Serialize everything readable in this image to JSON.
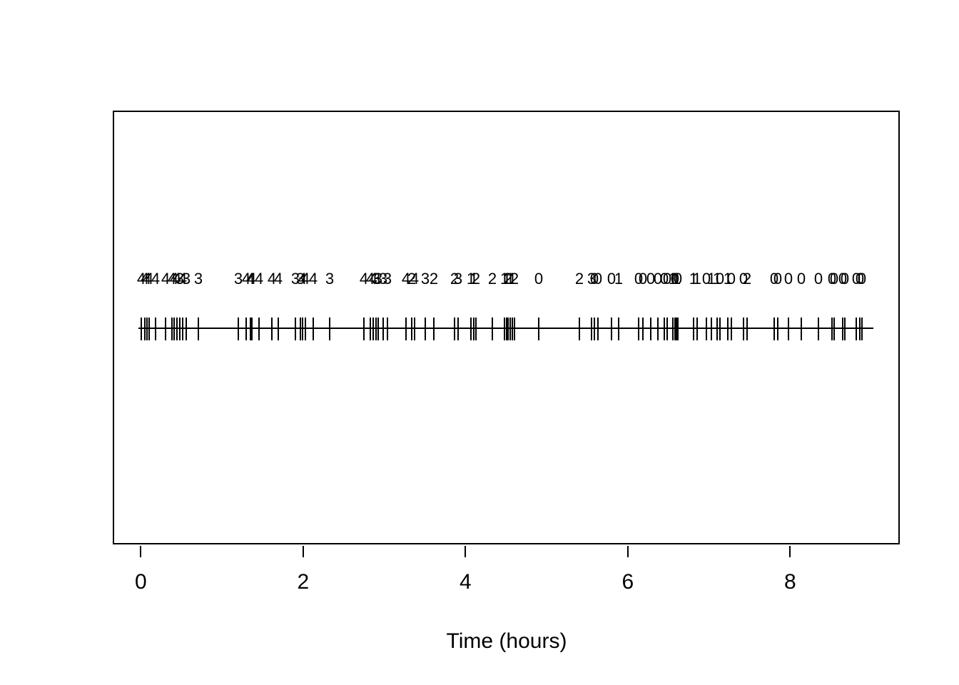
{
  "figure": {
    "background_color": "#ffffff",
    "foreground_color": "#000000"
  },
  "chart_data": {
    "type": "scatter",
    "subtype": "event-rug-plot",
    "title": "",
    "xlabel": "Time (hours)",
    "ylabel": "",
    "xlim": [
      -0.35,
      9.35
    ],
    "xticks": [
      0,
      2,
      4,
      6,
      8
    ],
    "xtick_labels": [
      "0",
      "2",
      "4",
      "6",
      "8"
    ],
    "grid": "off",
    "legend": "none",
    "description": "Horizontal timeline with a vertical tick at each event time; the number printed above each tick is the count label for that event.",
    "points": [
      {
        "t": 0.005,
        "n": 4
      },
      {
        "t": 0.049,
        "n": 4
      },
      {
        "t": 0.076,
        "n": 4
      },
      {
        "t": 0.102,
        "n": 4
      },
      {
        "t": 0.181,
        "n": 4
      },
      {
        "t": 0.304,
        "n": 4
      },
      {
        "t": 0.383,
        "n": 4
      },
      {
        "t": 0.41,
        "n": 4
      },
      {
        "t": 0.445,
        "n": 4
      },
      {
        "t": 0.48,
        "n": 3
      },
      {
        "t": 0.515,
        "n": 4
      },
      {
        "t": 0.559,
        "n": 3
      },
      {
        "t": 0.709,
        "n": 3
      },
      {
        "t": 1.201,
        "n": 3
      },
      {
        "t": 1.298,
        "n": 4
      },
      {
        "t": 1.35,
        "n": 4
      },
      {
        "t": 1.368,
        "n": 4
      },
      {
        "t": 1.456,
        "n": 4
      },
      {
        "t": 1.614,
        "n": 4
      },
      {
        "t": 1.693,
        "n": 4
      },
      {
        "t": 1.904,
        "n": 3
      },
      {
        "t": 1.966,
        "n": 3
      },
      {
        "t": 1.992,
        "n": 4
      },
      {
        "t": 2.027,
        "n": 4
      },
      {
        "t": 2.124,
        "n": 4
      },
      {
        "t": 2.326,
        "n": 3
      },
      {
        "t": 2.748,
        "n": 4
      },
      {
        "t": 2.827,
        "n": 4
      },
      {
        "t": 2.862,
        "n": 4
      },
      {
        "t": 2.898,
        "n": 3
      },
      {
        "t": 2.924,
        "n": 3
      },
      {
        "t": 2.986,
        "n": 3
      },
      {
        "t": 3.038,
        "n": 3
      },
      {
        "t": 3.267,
        "n": 4
      },
      {
        "t": 3.337,
        "n": 2
      },
      {
        "t": 3.372,
        "n": 4
      },
      {
        "t": 3.504,
        "n": 3
      },
      {
        "t": 3.61,
        "n": 2
      },
      {
        "t": 3.865,
        "n": 2
      },
      {
        "t": 3.909,
        "n": 3
      },
      {
        "t": 4.067,
        "n": 1
      },
      {
        "t": 4.102,
        "n": 1
      },
      {
        "t": 4.128,
        "n": 2
      },
      {
        "t": 4.331,
        "n": 2
      },
      {
        "t": 4.48,
        "n": 1
      },
      {
        "t": 4.507,
        "n": 1
      },
      {
        "t": 4.524,
        "n": 2
      },
      {
        "t": 4.551,
        "n": 1
      },
      {
        "t": 4.577,
        "n": 1
      },
      {
        "t": 4.603,
        "n": 2
      },
      {
        "t": 4.902,
        "n": 0
      },
      {
        "t": 5.403,
        "n": 2
      },
      {
        "t": 5.553,
        "n": 3
      },
      {
        "t": 5.588,
        "n": 0
      },
      {
        "t": 5.632,
        "n": 0
      },
      {
        "t": 5.799,
        "n": 0
      },
      {
        "t": 5.887,
        "n": 1
      },
      {
        "t": 6.133,
        "n": 0
      },
      {
        "t": 6.185,
        "n": 0
      },
      {
        "t": 6.282,
        "n": 0
      },
      {
        "t": 6.37,
        "n": 0
      },
      {
        "t": 6.449,
        "n": 0
      },
      {
        "t": 6.484,
        "n": 0
      },
      {
        "t": 6.555,
        "n": 1
      },
      {
        "t": 6.581,
        "n": 0
      },
      {
        "t": 6.598,
        "n": 1
      },
      {
        "t": 6.616,
        "n": 0
      },
      {
        "t": 6.809,
        "n": 1
      },
      {
        "t": 6.853,
        "n": 1
      },
      {
        "t": 6.968,
        "n": 0
      },
      {
        "t": 7.029,
        "n": 1
      },
      {
        "t": 7.1,
        "n": 1
      },
      {
        "t": 7.135,
        "n": 0
      },
      {
        "t": 7.231,
        "n": 1
      },
      {
        "t": 7.275,
        "n": 0
      },
      {
        "t": 7.425,
        "n": 0
      },
      {
        "t": 7.469,
        "n": 2
      },
      {
        "t": 7.803,
        "n": 0
      },
      {
        "t": 7.847,
        "n": 0
      },
      {
        "t": 7.979,
        "n": 0
      },
      {
        "t": 8.137,
        "n": 0
      },
      {
        "t": 8.348,
        "n": 0
      },
      {
        "t": 8.515,
        "n": 0
      },
      {
        "t": 8.541,
        "n": 0
      },
      {
        "t": 8.647,
        "n": 0
      },
      {
        "t": 8.673,
        "n": 0
      },
      {
        "t": 8.814,
        "n": 0
      },
      {
        "t": 8.858,
        "n": 0
      },
      {
        "t": 8.884,
        "n": 0
      }
    ]
  }
}
